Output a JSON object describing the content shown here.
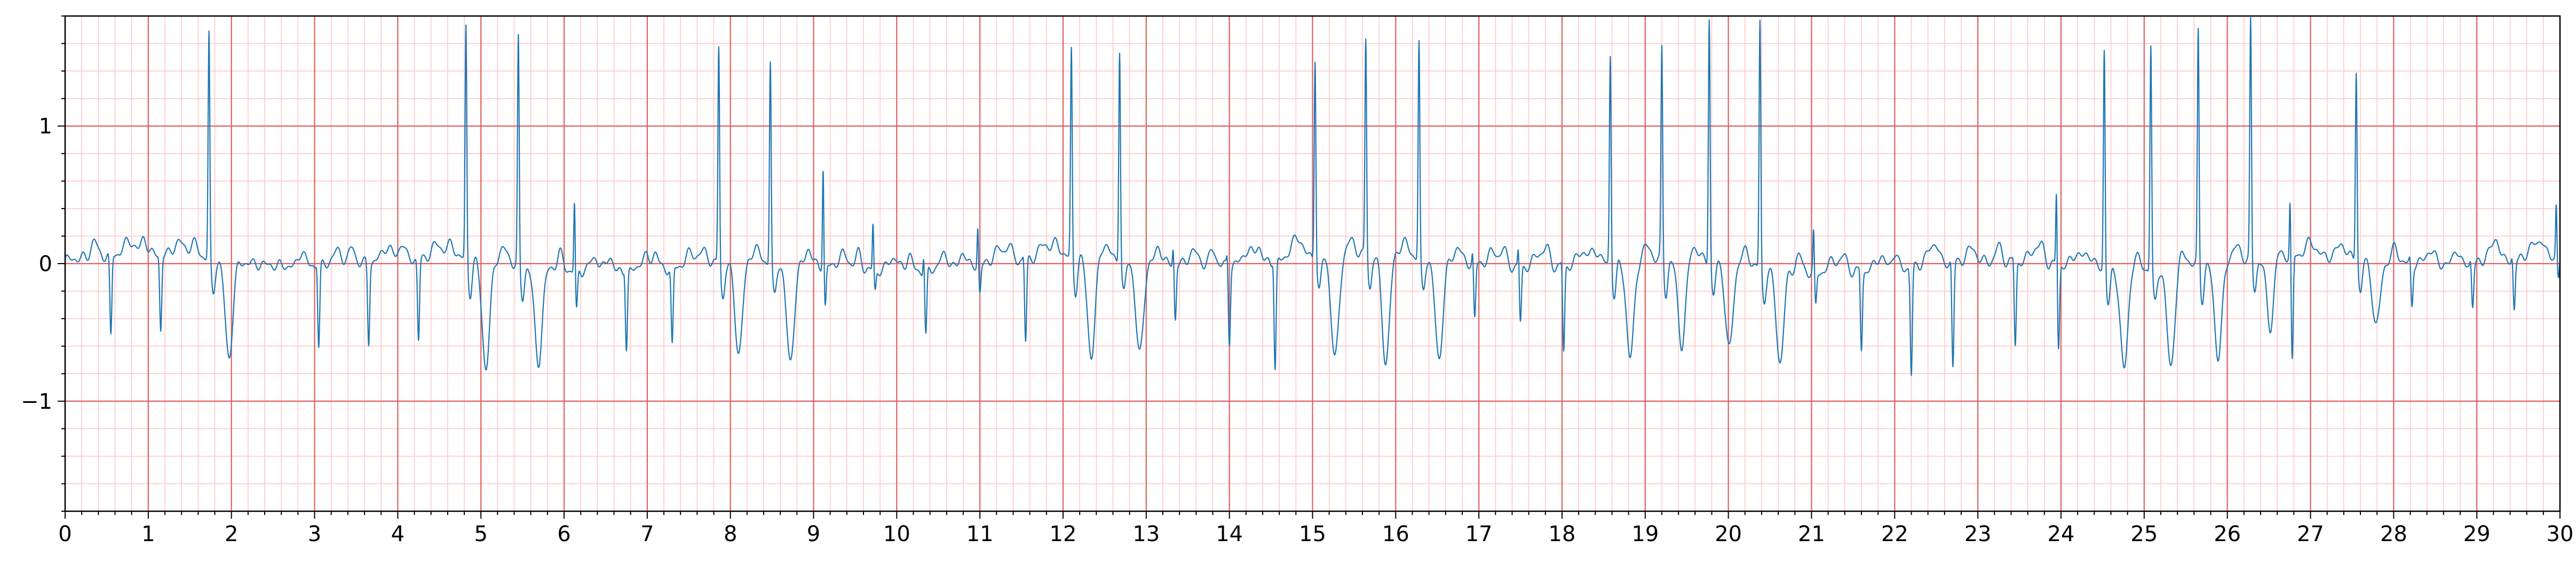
{
  "chart_data": {
    "type": "line",
    "title": "",
    "xlabel": "",
    "ylabel": "",
    "xlim": [
      0,
      30
    ],
    "ylim": [
      -1.8,
      1.8
    ],
    "grid": {
      "major_x_step": 1,
      "major_y_step": 1,
      "minor_x_step": 0.2,
      "minor_y_step": 0.2,
      "major_color": "#e06060",
      "minor_color": "#ffc8c8"
    },
    "line_color": "#1f77b4",
    "x_ticks": [
      "0",
      "1",
      "2",
      "3",
      "4",
      "5",
      "6",
      "7",
      "8",
      "9",
      "10",
      "11",
      "12",
      "13",
      "14",
      "15",
      "16",
      "17",
      "18",
      "19",
      "20",
      "21",
      "22",
      "23",
      "24",
      "25",
      "26",
      "27",
      "28",
      "29",
      "30"
    ],
    "y_ticks": [
      {
        "value": 1,
        "label": "1"
      },
      {
        "value": 0,
        "label": "0"
      },
      {
        "value": -1,
        "label": "−1"
      }
    ],
    "series": [
      {
        "beats": [
          {
            "t": 0.55,
            "type": "n",
            "amp": 0.0,
            "s": -0.6
          },
          {
            "t": 1.15,
            "type": "n",
            "amp": 0.0,
            "s": -0.55
          },
          {
            "t": 1.73,
            "type": "v",
            "amp": 1.65,
            "s": -0.7
          },
          {
            "t": 3.05,
            "type": "n",
            "amp": 0.05,
            "s": -0.58
          },
          {
            "t": 3.65,
            "type": "n",
            "amp": 0.0,
            "s": -0.58
          },
          {
            "t": 4.25,
            "type": "n",
            "amp": 0.0,
            "s": -0.6
          },
          {
            "t": 4.82,
            "type": "v",
            "amp": 1.7,
            "s": -0.78
          },
          {
            "t": 5.45,
            "type": "v",
            "amp": 1.65,
            "s": -0.7
          },
          {
            "t": 6.15,
            "type": "n",
            "amp": 0.52,
            "s": -0.3
          },
          {
            "t": 6.75,
            "type": "n",
            "amp": 0.05,
            "s": -0.55
          },
          {
            "t": 7.3,
            "type": "n",
            "amp": 0.0,
            "s": -0.57
          },
          {
            "t": 7.86,
            "type": "v",
            "amp": 1.6,
            "s": -0.65
          },
          {
            "t": 8.48,
            "type": "v",
            "amp": 1.48,
            "s": -0.72
          },
          {
            "t": 9.14,
            "type": "n",
            "amp": 0.75,
            "s": -0.3
          },
          {
            "t": 9.74,
            "type": "n",
            "amp": 0.35,
            "s": -0.15
          },
          {
            "t": 10.35,
            "type": "n",
            "amp": 0.15,
            "s": -0.48
          },
          {
            "t": 11.0,
            "type": "n",
            "amp": 0.3,
            "s": -0.2
          },
          {
            "t": 11.55,
            "type": "n",
            "amp": 0.05,
            "s": -0.6
          },
          {
            "t": 12.1,
            "type": "v",
            "amp": 1.52,
            "s": -0.72
          },
          {
            "t": 12.68,
            "type": "v",
            "amp": 1.55,
            "s": -0.68
          },
          {
            "t": 13.35,
            "type": "n",
            "amp": 0.15,
            "s": -0.4
          },
          {
            "t": 14.0,
            "type": "n",
            "amp": 0.1,
            "s": -0.55
          },
          {
            "t": 14.55,
            "type": "n",
            "amp": 0.05,
            "s": -0.78
          },
          {
            "t": 15.03,
            "type": "v",
            "amp": 1.48,
            "s": -0.75
          },
          {
            "t": 15.64,
            "type": "v",
            "amp": 1.58,
            "s": -0.78
          },
          {
            "t": 16.28,
            "type": "v",
            "amp": 1.58,
            "s": -0.73
          },
          {
            "t": 16.95,
            "type": "n",
            "amp": 0.1,
            "s": -0.4
          },
          {
            "t": 17.5,
            "type": "n",
            "amp": 0.15,
            "s": -0.4
          },
          {
            "t": 18.02,
            "type": "n",
            "amp": 0.05,
            "s": -0.62
          },
          {
            "t": 18.58,
            "type": "v",
            "amp": 1.53,
            "s": -0.7
          },
          {
            "t": 19.2,
            "type": "v",
            "amp": 1.55,
            "s": -0.62
          },
          {
            "t": 19.77,
            "type": "v",
            "amp": 1.8,
            "s": -0.62
          },
          {
            "t": 20.38,
            "type": "v",
            "amp": 1.8,
            "s": -0.67
          },
          {
            "t": 21.05,
            "type": "n",
            "amp": 0.3,
            "s": -0.25
          },
          {
            "t": 21.6,
            "type": "n",
            "amp": 0.05,
            "s": -0.55
          },
          {
            "t": 22.2,
            "type": "n",
            "amp": 0.0,
            "s": -0.78
          },
          {
            "t": 22.7,
            "type": "n",
            "amp": 0.05,
            "s": -0.75
          },
          {
            "t": 23.45,
            "type": "n",
            "amp": 0.05,
            "s": -0.6
          },
          {
            "t": 23.97,
            "type": "n",
            "amp": 0.58,
            "s": -0.6
          },
          {
            "t": 24.52,
            "type": "v",
            "amp": 1.62,
            "s": -0.72
          },
          {
            "t": 25.08,
            "type": "v",
            "amp": 1.65,
            "s": -0.72
          },
          {
            "t": 25.65,
            "type": "v",
            "amp": 1.72,
            "s": -0.68
          },
          {
            "t": 26.28,
            "type": "v",
            "amp": 1.75,
            "s": -0.55
          },
          {
            "t": 26.78,
            "type": "n",
            "amp": 0.45,
            "s": -0.78
          },
          {
            "t": 27.55,
            "type": "v",
            "amp": 1.4,
            "s": -0.48
          },
          {
            "t": 28.22,
            "type": "n",
            "amp": 0.05,
            "s": -0.3
          },
          {
            "t": 28.95,
            "type": "n",
            "amp": 0.05,
            "s": -0.3
          },
          {
            "t": 29.45,
            "type": "n",
            "amp": 0.05,
            "s": -0.35
          },
          {
            "t": 29.98,
            "type": "n",
            "amp": 0.4,
            "s": -0.15
          }
        ]
      }
    ]
  }
}
